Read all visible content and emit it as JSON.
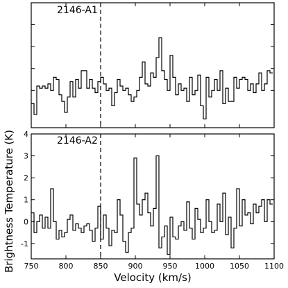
{
  "chart_data": {
    "type": "line",
    "step": true,
    "xlabel": "Velocity (km/s)",
    "ylabel": "Brightness Temperature (K)",
    "xlim": [
      750,
      1100
    ],
    "xticks": [
      750,
      800,
      850,
      900,
      950,
      1000,
      1050,
      1100
    ],
    "vline": 850,
    "panels": [
      {
        "label": "2146-A1",
        "ylim": [
          -1.7,
          4.0
        ],
        "yticks": [
          0,
          1,
          2,
          3
        ],
        "show_ytick_labels": false,
        "x": [
          752,
          756,
          760,
          764,
          768,
          772,
          776,
          780,
          784,
          788,
          792,
          796,
          800,
          804,
          808,
          812,
          816,
          820,
          824,
          828,
          832,
          836,
          840,
          844,
          848,
          852,
          856,
          860,
          864,
          868,
          872,
          876,
          880,
          884,
          888,
          892,
          896,
          900,
          904,
          908,
          912,
          916,
          920,
          924,
          928,
          932,
          936,
          940,
          944,
          948,
          952,
          956,
          960,
          964,
          968,
          972,
          976,
          980,
          984,
          988,
          992,
          996,
          1000,
          1004,
          1008,
          1012,
          1016,
          1020,
          1024,
          1028,
          1032,
          1036,
          1040,
          1044,
          1048,
          1052,
          1056,
          1060,
          1064,
          1068,
          1072,
          1076,
          1080,
          1084,
          1088,
          1092,
          1096
        ],
        "y": [
          -0.6,
          -1.1,
          0.2,
          0.1,
          0.2,
          0.1,
          0.3,
          0.0,
          0.6,
          0.5,
          -0.2,
          -0.5,
          -1.0,
          -0.3,
          0.4,
          -0.3,
          0.5,
          0.1,
          0.9,
          0.9,
          0.1,
          0.5,
          0.1,
          -0.1,
          0.4,
          0.6,
          0.3,
          0.0,
          0.1,
          -0.7,
          -0.1,
          0.5,
          0.2,
          0.0,
          0.1,
          -0.2,
          -0.5,
          -0.3,
          0.0,
          0.6,
          1.3,
          0.3,
          0.2,
          0.8,
          0.6,
          1.5,
          2.4,
          0.9,
          0.5,
          0.0,
          1.6,
          0.6,
          -0.2,
          0.3,
          0.0,
          0.1,
          -0.5,
          0.6,
          -0.2,
          0.0,
          0.7,
          -0.7,
          -1.3,
          0.6,
          -0.3,
          0.0,
          0.5,
          0.0,
          0.9,
          -0.6,
          0.1,
          -0.5,
          -0.5,
          0.6,
          0.1,
          0.5,
          0.6,
          0.5,
          0.0,
          0.3,
          -0.1,
          0.3,
          0.8,
          0.0,
          0.3,
          0.9,
          0.8
        ]
      },
      {
        "label": "2146-A2",
        "ylim": [
          -1.7,
          4.0
        ],
        "yticks": [
          -1,
          0,
          1,
          2,
          3,
          4
        ],
        "show_ytick_labels": true,
        "x": [
          752,
          756,
          760,
          764,
          768,
          772,
          776,
          780,
          784,
          788,
          792,
          796,
          800,
          804,
          808,
          812,
          816,
          820,
          824,
          828,
          832,
          836,
          840,
          844,
          848,
          852,
          856,
          860,
          864,
          868,
          872,
          876,
          880,
          884,
          888,
          892,
          896,
          900,
          904,
          908,
          912,
          916,
          920,
          924,
          928,
          932,
          936,
          940,
          944,
          948,
          952,
          956,
          960,
          964,
          968,
          972,
          976,
          980,
          984,
          988,
          992,
          996,
          1000,
          1004,
          1008,
          1012,
          1016,
          1020,
          1024,
          1028,
          1032,
          1036,
          1040,
          1044,
          1048,
          1052,
          1056,
          1060,
          1064,
          1068,
          1072,
          1076,
          1080,
          1084,
          1088,
          1092,
          1096
        ],
        "y": [
          0.4,
          -0.5,
          0.0,
          0.3,
          -0.3,
          0.2,
          -0.3,
          1.5,
          0.0,
          -0.8,
          -0.4,
          -0.7,
          -0.5,
          0.1,
          0.3,
          -0.4,
          -0.1,
          -0.3,
          -0.5,
          -0.2,
          -0.1,
          -0.4,
          -0.9,
          -0.3,
          0.7,
          -0.8,
          0.3,
          -0.3,
          -1.1,
          -0.4,
          -0.5,
          1.0,
          0.3,
          -0.9,
          -1.4,
          -0.5,
          -0.3,
          2.9,
          0.8,
          0.3,
          1.0,
          1.3,
          0.4,
          -0.2,
          0.6,
          3.0,
          -1.2,
          -0.7,
          -0.2,
          -1.5,
          0.2,
          -0.7,
          -0.8,
          -0.2,
          0.0,
          -0.4,
          0.9,
          -0.3,
          -0.8,
          0.6,
          0.1,
          -0.5,
          -0.3,
          1.0,
          0.0,
          -0.5,
          -0.4,
          0.8,
          0.0,
          1.3,
          -0.6,
          0.2,
          -1.2,
          -0.3,
          1.5,
          -0.2,
          1.0,
          0.3,
          0.4,
          -0.1,
          0.8,
          0.4,
          0.7,
          1.0,
          0.0,
          1.0,
          0.8
        ]
      }
    ]
  }
}
